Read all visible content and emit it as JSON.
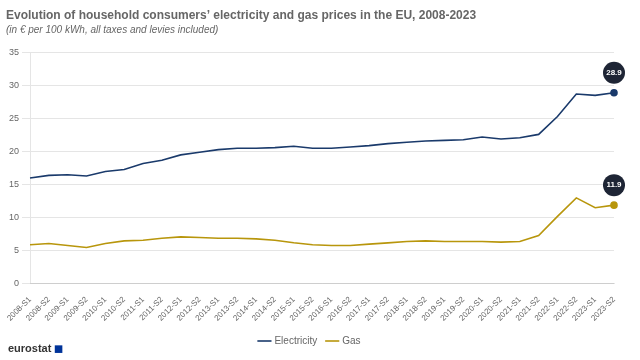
{
  "chart_data": {
    "type": "line",
    "title": "Evolution of household consumers’ electricity and gas prices in the EU, 2008-2023",
    "subtitle": "(in € per 100 kWh, all taxes and levies included)",
    "categories": [
      "2008-S1",
      "2008-S2",
      "2009-S1",
      "2009-S2",
      "2010-S1",
      "2010-S2",
      "2011-S1",
      "2011-S2",
      "2012-S1",
      "2012-S2",
      "2013-S1",
      "2013-S2",
      "2014-S1",
      "2014-S2",
      "2015-S1",
      "2015-S2",
      "2016-S1",
      "2016-S2",
      "2017-S1",
      "2017-S2",
      "2018-S1",
      "2018-S2",
      "2019-S1",
      "2019-S2",
      "2020-S1",
      "2020-S2",
      "2021-S1",
      "2021-S2",
      "2022-S1",
      "2022-S2",
      "2023-S1",
      "2023-S2"
    ],
    "series": [
      {
        "name": "Electricity",
        "color": "#1a3a6b",
        "values": [
          16.0,
          16.4,
          16.5,
          16.3,
          17.0,
          17.3,
          18.2,
          18.7,
          19.5,
          19.9,
          20.3,
          20.5,
          20.5,
          20.6,
          20.8,
          20.5,
          20.5,
          20.7,
          20.9,
          21.2,
          21.4,
          21.6,
          21.7,
          21.8,
          22.2,
          21.9,
          22.1,
          22.6,
          25.3,
          28.7,
          28.5,
          28.9
        ]
      },
      {
        "name": "Gas",
        "color": "#b8960c",
        "values": [
          5.9,
          6.1,
          5.8,
          5.5,
          6.1,
          6.5,
          6.6,
          6.9,
          7.1,
          7.0,
          6.9,
          6.9,
          6.8,
          6.6,
          6.2,
          5.9,
          5.8,
          5.8,
          6.0,
          6.2,
          6.4,
          6.5,
          6.4,
          6.4,
          6.4,
          6.3,
          6.4,
          7.3,
          10.2,
          13.0,
          11.5,
          11.9
        ]
      }
    ],
    "annotations": [
      {
        "text": "28.9",
        "x": "2023-S2",
        "y": 28.9,
        "color": "#1e2535"
      },
      {
        "text": "11.9",
        "x": "2023-S2",
        "y": 11.9,
        "color": "#1e2535"
      },
      {
        "text": "eurostat",
        "color": "#333333"
      },
      {
        "text": "◼",
        "color": "#003399"
      }
    ],
    "ylim": [
      0,
      35
    ],
    "yticks": [
      0,
      5,
      10,
      15,
      20,
      25,
      30,
      35
    ],
    "grid": true,
    "legend": "bottom"
  }
}
